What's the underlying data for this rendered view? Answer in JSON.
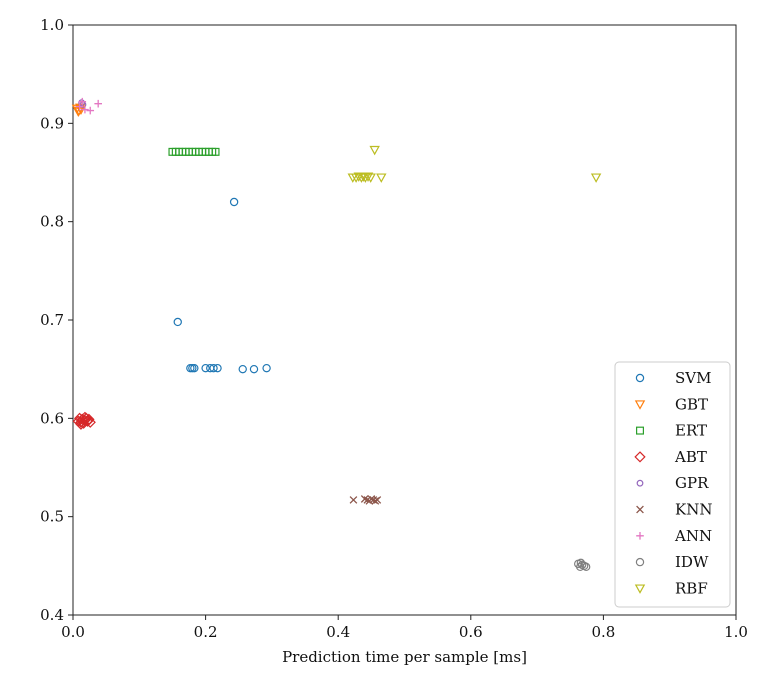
{
  "chart_data": {
    "type": "scatter",
    "title": "",
    "xlabel": "Prediction time per sample [ms]",
    "ylabel": "",
    "xlim": [
      0.0,
      1.0
    ],
    "ylim": [
      0.4,
      1.0
    ],
    "x_ticks": [
      "0.0",
      "0.2",
      "0.4",
      "0.6",
      "0.8",
      "1.0"
    ],
    "y_ticks": [
      "0.4",
      "0.5",
      "0.6",
      "0.7",
      "0.8",
      "0.9",
      "1.0"
    ],
    "grid": false,
    "legend_position": "lower-right",
    "series": [
      {
        "name": "SVM",
        "color": "#1f77b4",
        "marker": "circle",
        "points": [
          [
            0.243,
            0.82
          ],
          [
            0.158,
            0.698
          ],
          [
            0.177,
            0.651
          ],
          [
            0.18,
            0.651
          ],
          [
            0.183,
            0.651
          ],
          [
            0.2,
            0.651
          ],
          [
            0.207,
            0.651
          ],
          [
            0.212,
            0.651
          ],
          [
            0.218,
            0.651
          ],
          [
            0.256,
            0.65
          ],
          [
            0.273,
            0.65
          ],
          [
            0.292,
            0.651
          ]
        ]
      },
      {
        "name": "GBT",
        "color": "#ff7f0e",
        "marker": "triangle-down",
        "points": [
          [
            0.006,
            0.915
          ],
          [
            0.009,
            0.913
          ],
          [
            0.011,
            0.916
          ],
          [
            0.008,
            0.912
          ],
          [
            0.012,
            0.914
          ]
        ]
      },
      {
        "name": "ERT",
        "color": "#2ca02c",
        "marker": "square",
        "points": [
          [
            0.15,
            0.871
          ],
          [
            0.155,
            0.871
          ],
          [
            0.16,
            0.871
          ],
          [
            0.165,
            0.871
          ],
          [
            0.17,
            0.871
          ],
          [
            0.175,
            0.871
          ],
          [
            0.18,
            0.871
          ],
          [
            0.185,
            0.871
          ],
          [
            0.19,
            0.871
          ],
          [
            0.195,
            0.871
          ],
          [
            0.2,
            0.871
          ],
          [
            0.205,
            0.871
          ],
          [
            0.21,
            0.871
          ],
          [
            0.215,
            0.871
          ]
        ]
      },
      {
        "name": "ABT",
        "color": "#d62728",
        "marker": "diamond",
        "points": [
          [
            0.008,
            0.597
          ],
          [
            0.01,
            0.6
          ],
          [
            0.012,
            0.596
          ],
          [
            0.014,
            0.599
          ],
          [
            0.016,
            0.595
          ],
          [
            0.018,
            0.598
          ],
          [
            0.02,
            0.6
          ],
          [
            0.022,
            0.597
          ],
          [
            0.024,
            0.599
          ],
          [
            0.026,
            0.596
          ],
          [
            0.012,
            0.594
          ],
          [
            0.018,
            0.601
          ]
        ]
      },
      {
        "name": "GPR",
        "color": "#9467bd",
        "marker": "circle-small",
        "points": [
          [
            0.013,
            0.921
          ],
          [
            0.015,
            0.919
          ]
        ]
      },
      {
        "name": "KNN",
        "color": "#8c564b",
        "marker": "x",
        "points": [
          [
            0.423,
            0.517
          ],
          [
            0.44,
            0.518
          ],
          [
            0.444,
            0.517
          ],
          [
            0.447,
            0.516
          ],
          [
            0.45,
            0.518
          ],
          [
            0.453,
            0.517
          ],
          [
            0.456,
            0.516
          ],
          [
            0.459,
            0.517
          ]
        ]
      },
      {
        "name": "ANN",
        "color": "#e377c2",
        "marker": "plus",
        "points": [
          [
            0.01,
            0.917
          ],
          [
            0.014,
            0.922
          ],
          [
            0.018,
            0.914
          ],
          [
            0.026,
            0.913
          ],
          [
            0.038,
            0.92
          ]
        ]
      },
      {
        "name": "IDW",
        "color": "#7f7f7f",
        "marker": "circle",
        "points": [
          [
            0.762,
            0.452
          ],
          [
            0.765,
            0.449
          ],
          [
            0.768,
            0.451
          ],
          [
            0.771,
            0.45
          ],
          [
            0.774,
            0.449
          ],
          [
            0.766,
            0.453
          ]
        ]
      },
      {
        "name": "RBF",
        "color": "#bcbd22",
        "marker": "triangle-down",
        "points": [
          [
            0.455,
            0.873
          ],
          [
            0.422,
            0.845
          ],
          [
            0.427,
            0.845
          ],
          [
            0.431,
            0.846
          ],
          [
            0.435,
            0.845
          ],
          [
            0.438,
            0.846
          ],
          [
            0.441,
            0.845
          ],
          [
            0.445,
            0.846
          ],
          [
            0.449,
            0.845
          ],
          [
            0.465,
            0.845
          ],
          [
            0.789,
            0.845
          ]
        ]
      }
    ]
  }
}
